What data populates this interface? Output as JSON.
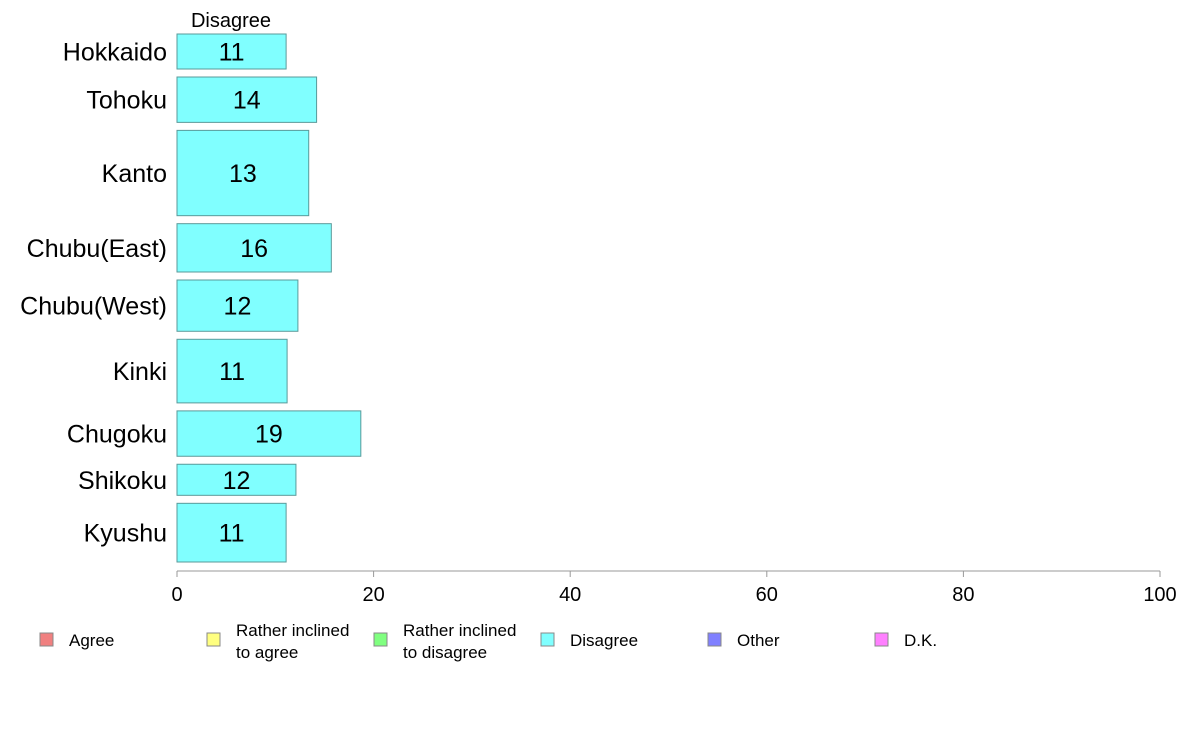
{
  "chart_data": {
    "type": "bar",
    "orientation": "horizontal",
    "series_title": "Disagree",
    "categories": [
      "Hokkaido",
      "Tohoku",
      "Kanto",
      "Chubu(East)",
      "Chubu(West)",
      "Kinki",
      "Chugoku",
      "Shikoku",
      "Kyushu"
    ],
    "category_weights": [
      0.71,
      0.92,
      1.73,
      0.98,
      1.04,
      1.29,
      0.92,
      0.63,
      1.19
    ],
    "series": [
      {
        "name": "Disagree",
        "values": [
          11.1,
          14.2,
          13.4,
          15.7,
          12.3,
          11.2,
          18.7,
          12.1,
          11.1
        ],
        "labels": [
          "11",
          "14",
          "13",
          "16",
          "12",
          "11",
          "19",
          "12",
          "11"
        ],
        "color": "#80ffff"
      }
    ],
    "xlim": [
      0,
      100
    ],
    "xticks": [
      0,
      20,
      40,
      60,
      80,
      100
    ],
    "xlabel": "",
    "ylabel": "",
    "grid": false,
    "legend": {
      "position": "bottom",
      "entries": [
        {
          "label": [
            "Agree"
          ],
          "color": "#f08080"
        },
        {
          "label": [
            "Rather inclined",
            "to agree"
          ],
          "color": "#ffff80"
        },
        {
          "label": [
            "Rather inclined",
            "to disagree"
          ],
          "color": "#80ff80"
        },
        {
          "label": [
            "Disagree"
          ],
          "color": "#80ffff"
        },
        {
          "label": [
            "Other"
          ],
          "color": "#8080ff"
        },
        {
          "label": [
            "D.K."
          ],
          "color": "#ff80ff"
        }
      ]
    }
  }
}
